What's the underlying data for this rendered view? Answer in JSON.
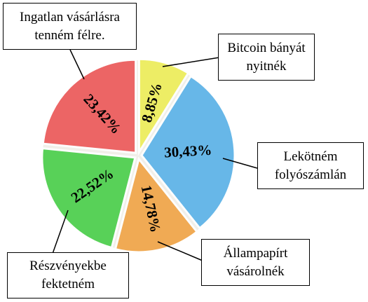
{
  "chart_data": {
    "type": "pie",
    "categories": [
      "Bitcoin bányát nyitnék",
      "Lekötném folyószámlán",
      "Állampapírt vásárolnék",
      "Részvényekbe fektetném",
      "Ingatlan vásárlásra tenném félre."
    ],
    "values": [
      8.85,
      30.43,
      14.78,
      22.52,
      23.42
    ],
    "value_labels": [
      "8,85%",
      "30,43%",
      "14,78%",
      "22,52%",
      "23,42%"
    ],
    "colors": [
      "#eded5a",
      "#5cb3e8",
      "#f0a548",
      "#4ccf4c",
      "#ec5a5a"
    ]
  }
}
